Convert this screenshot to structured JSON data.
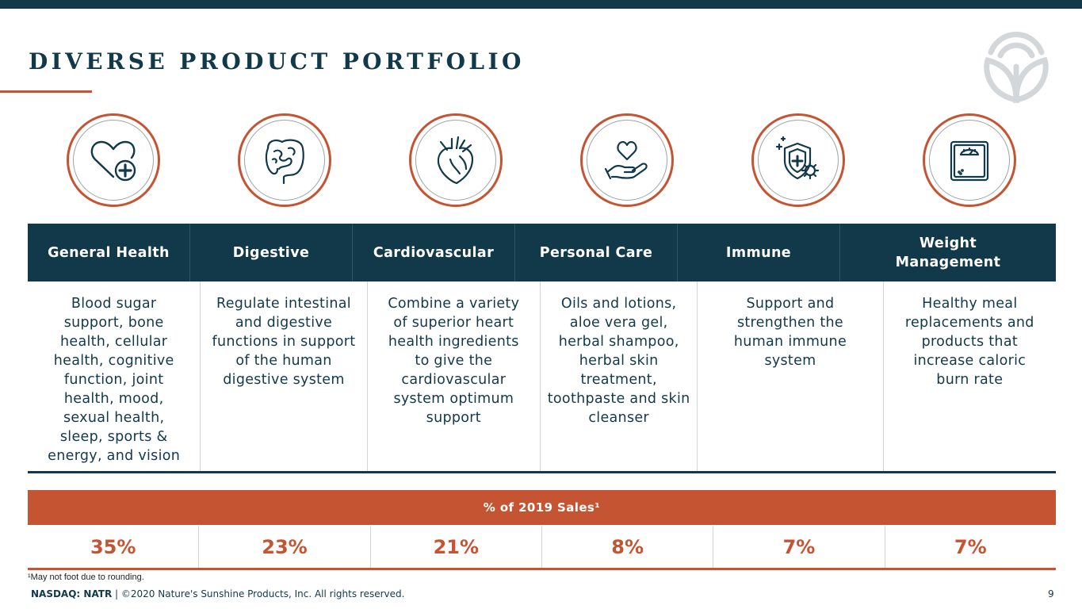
{
  "slide": {
    "title": "DIVERSE PRODUCT PORTFOLIO",
    "categories": [
      {
        "icon": "heart-plus-icon",
        "header": "General Health",
        "description": "Blood sugar support, bone health, cellular health, cognitive function, joint health, mood, sexual health, sleep, sports & energy, and vision",
        "percent": "35%"
      },
      {
        "icon": "intestines-icon",
        "header": "Digestive",
        "description": "Regulate intestinal and digestive functions in support of the human digestive system",
        "percent": "23%"
      },
      {
        "icon": "anatomical-heart-icon",
        "header": "Cardiovascular",
        "description": "Combine a variety of superior heart health ingredients to give the cardiovascular system optimum support",
        "percent": "21%"
      },
      {
        "icon": "hand-heart-icon",
        "header": "Personal Care",
        "description": "Oils and lotions, aloe vera gel, herbal shampoo, herbal skin treatment, toothpaste and skin cleanser",
        "percent": "8%"
      },
      {
        "icon": "immune-shield-icon",
        "header": "Immune",
        "description": "Support and strengthen the human immune system",
        "percent": "7%"
      },
      {
        "icon": "scale-icon",
        "header": "Weight Management",
        "description": "Healthy meal replacements and products that increase caloric burn rate",
        "percent": "7%"
      }
    ],
    "sales_label": "% of 2019 Sales¹",
    "footnote": "¹May not foot due to rounding.",
    "footer_ticker": "NASDAQ: NATR",
    "footer_text": " | ©2020 Nature's Sunshine Products, Inc. All rights reserved.",
    "page_number": "9",
    "colors": {
      "navy": "#12394a",
      "accent": "#c55432",
      "gray": "#9aa4aa"
    }
  }
}
